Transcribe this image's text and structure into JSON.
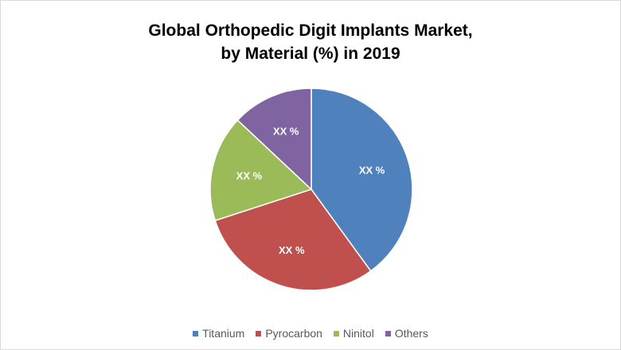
{
  "chart_data": {
    "type": "pie",
    "title_line1": "Global Orthopedic Digit Implants Market,",
    "title_line2": "by Material (%) in 2019",
    "categories": [
      "Titanium",
      "Pyrocarbon",
      "Ninitol",
      "Others"
    ],
    "values": [
      40,
      30,
      17,
      13
    ],
    "data_labels": [
      "XX %",
      "XX %",
      "XX %",
      "XX %"
    ],
    "colors": [
      "#4f81bd",
      "#c0504d",
      "#9bbb59",
      "#8064a2"
    ],
    "start_angle": "top, clockwise",
    "legend_position": "bottom"
  }
}
